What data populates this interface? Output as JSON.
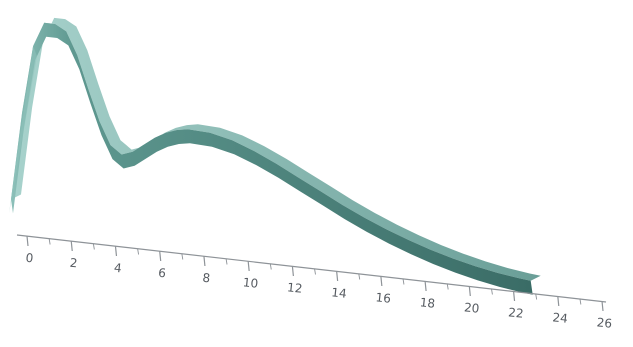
{
  "chart_data": {
    "type": "area",
    "title": "",
    "xlabel": "",
    "ylabel": "",
    "xlim": [
      0,
      26
    ],
    "grid": false,
    "legend": "none",
    "tick_labels": [
      "0",
      "2",
      "4",
      "6",
      "8",
      "10",
      "12",
      "14",
      "16",
      "18",
      "20",
      "22",
      "24",
      "26"
    ],
    "series": [
      {
        "x": [
          0,
          0.5,
          1,
          1.5,
          2,
          2.5,
          3,
          3.5,
          4,
          4.5,
          5,
          5.5,
          6,
          6.5,
          7,
          7.5,
          8,
          9,
          10,
          11,
          12,
          13,
          14,
          15,
          16,
          17,
          18,
          19,
          20,
          21,
          22,
          23,
          23.5
        ],
        "y": [
          0.12,
          0.55,
          0.88,
          1.0,
          1.0,
          0.97,
          0.86,
          0.7,
          0.55,
          0.44,
          0.4,
          0.42,
          0.46,
          0.5,
          0.53,
          0.55,
          0.56,
          0.555,
          0.53,
          0.49,
          0.44,
          0.385,
          0.33,
          0.275,
          0.225,
          0.18,
          0.14,
          0.105,
          0.075,
          0.05,
          0.03,
          0.015,
          0.01
        ]
      }
    ],
    "colors": {
      "ribbon_front": "#3f746d",
      "ribbon_top": "#7fb1aa",
      "axis": "#8e9398"
    }
  }
}
